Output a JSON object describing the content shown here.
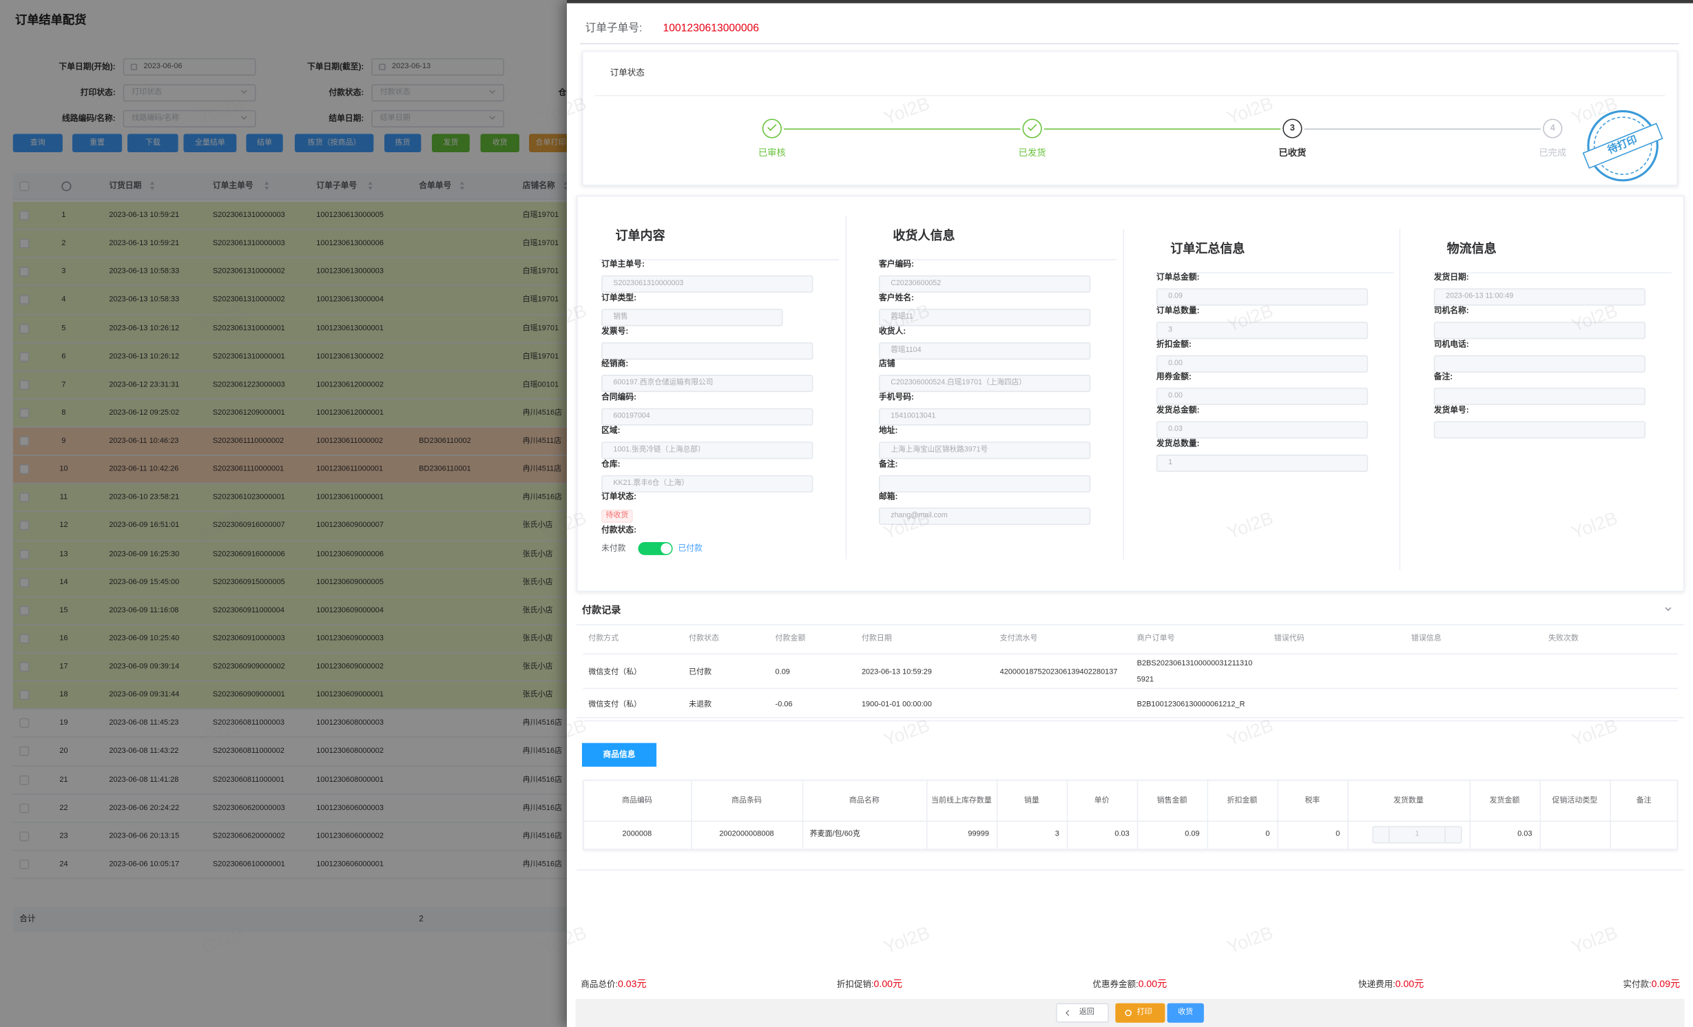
{
  "list_page": {
    "title": "订单结单配货",
    "filters": [
      {
        "label": "下单日期(开始):",
        "value": "2023-06-06"
      },
      {
        "label": "下单日期(截至):",
        "value": "2023-06-13"
      },
      {
        "label": "打印状态:",
        "placeholder": "打印状态"
      },
      {
        "label": "付款状态:",
        "placeholder": "付款状态"
      },
      {
        "label": "线路编码/名称:",
        "placeholder": "线路编码/名称"
      },
      {
        "label": "结单日期:",
        "placeholder": "结单日期"
      }
    ],
    "cut_label": "仓",
    "buttons": [
      "查询",
      "重置",
      "下载",
      "全量结单",
      "结单",
      "拣货（按商品）",
      "拣货",
      "发货",
      "收货",
      "合单打印"
    ],
    "columns": [
      "订货日期",
      "订单主单号",
      "订单子单号",
      "合单单号",
      "店铺名称"
    ],
    "rows": [
      {
        "index": 1,
        "date": "2023-06-13 10:59:21",
        "main": "S2023061310000003",
        "sub": "1001230613000005",
        "store": "白瑶19701"
      },
      {
        "index": 2,
        "date": "2023-06-13 10:59:21",
        "main": "S2023061310000003",
        "sub": "1001230613000006",
        "store": "白瑶19701"
      },
      {
        "index": 3,
        "date": "2023-06-13 10:58:33",
        "main": "S2023061310000002",
        "sub": "1001230613000003",
        "store": "白瑶19701"
      },
      {
        "index": 4,
        "date": "2023-06-13 10:58:33",
        "main": "S2023061310000002",
        "sub": "1001230613000004",
        "store": "白瑶19701"
      },
      {
        "index": 5,
        "date": "2023-06-13 10:26:12",
        "main": "S2023061310000001",
        "sub": "1001230613000001",
        "store": "白瑶19701"
      },
      {
        "index": 6,
        "date": "2023-06-13 10:26:12",
        "main": "S2023061310000001",
        "sub": "1001230613000002",
        "store": "白瑶19701"
      },
      {
        "index": 7,
        "date": "2023-06-12 23:31:31",
        "main": "S2023061223000003",
        "sub": "1001230612000002",
        "store": "白瑶00101"
      },
      {
        "index": 8,
        "date": "2023-06-12 09:25:02",
        "main": "S2023061209000001",
        "sub": "1001230612000001",
        "store": "冉川4516店"
      },
      {
        "index": 9,
        "date": "2023-06-11 10:46:23",
        "main": "S2023061110000002",
        "sub": "1001230611000002",
        "merge": "BD2306110002",
        "store": "冉川4511店"
      },
      {
        "index": 10,
        "date": "2023-06-11 10:42:26",
        "main": "S2023061110000001",
        "sub": "1001230611000001",
        "merge": "BD2306110001",
        "store": "冉川4511店"
      },
      {
        "index": 11,
        "date": "2023-06-10 23:58:21",
        "main": "S2023061023000001",
        "sub": "1001230610000001",
        "store": "冉川4516店"
      },
      {
        "index": 12,
        "date": "2023-06-09 16:51:01",
        "main": "S2023060916000007",
        "sub": "1001230609000007",
        "store": "张氏小店"
      },
      {
        "index": 13,
        "date": "2023-06-09 16:25:30",
        "main": "S2023060916000006",
        "sub": "1001230609000006",
        "store": "张氏小店"
      },
      {
        "index": 14,
        "date": "2023-06-09 15:45:00",
        "main": "S2023060915000005",
        "sub": "1001230609000005",
        "store": "张氏小店"
      },
      {
        "index": 15,
        "date": "2023-06-09 11:16:08",
        "main": "S2023060911000004",
        "sub": "1001230609000004",
        "store": "张氏小店"
      },
      {
        "index": 16,
        "date": "2023-06-09 10:25:40",
        "main": "S2023060910000003",
        "sub": "1001230609000003",
        "store": "张氏小店"
      },
      {
        "index": 17,
        "date": "2023-06-09 09:39:14",
        "main": "S2023060909000002",
        "sub": "1001230609000002",
        "store": "张氏小店"
      },
      {
        "index": 18,
        "date": "2023-06-09 09:31:44",
        "main": "S2023060909000001",
        "sub": "1001230609000001",
        "store": "张氏小店"
      },
      {
        "index": 19,
        "date": "2023-06-08 11:45:23",
        "main": "S2023060811000003",
        "sub": "1001230608000003",
        "store": "冉川4516店"
      },
      {
        "index": 20,
        "date": "2023-06-08 11:43:22",
        "main": "S2023060811000002",
        "sub": "1001230608000002",
        "store": "冉川4516店"
      },
      {
        "index": 21,
        "date": "2023-06-08 11:41:28",
        "main": "S2023060811000001",
        "sub": "1001230608000001",
        "store": "冉川4516店"
      },
      {
        "index": 22,
        "date": "2023-06-06 20:24:22",
        "main": "S2023060620000003",
        "sub": "1001230606000003",
        "store": "冉川4516店"
      },
      {
        "index": 23,
        "date": "2023-06-06 20:13:15",
        "main": "S2023060620000002",
        "sub": "1001230606000002",
        "store": "冉川4516店"
      },
      {
        "index": 24,
        "date": "2023-06-06 10:05:17",
        "main": "S2023060610000001",
        "sub": "1001230606000001",
        "store": "冉川4516店"
      }
    ],
    "footer": {
      "label": "合计",
      "value": "2"
    }
  },
  "drawer": {
    "header": {
      "label": "订单子单号:",
      "value": "1001230613000006"
    },
    "status_card": {
      "title": "订单状态",
      "steps": [
        {
          "label": "已审核",
          "state": "done"
        },
        {
          "label": "已发货",
          "state": "done"
        },
        {
          "number": 3,
          "label": "已收货",
          "state": "current"
        },
        {
          "number": 4,
          "label": "已完成",
          "state": "wait"
        }
      ],
      "stamp": "待打印"
    },
    "sections": [
      {
        "title": "订单内容",
        "fields": [
          {
            "label": "订单主单号:",
            "value": "S2023061310000003"
          },
          {
            "label": "订单类型:",
            "value": "销售"
          },
          {
            "label": "发票号:"
          },
          {
            "label": "经销商:",
            "value": "600197.西京仓储运输有限公司"
          },
          {
            "label": "合同编码:",
            "value": "600197004"
          },
          {
            "label": "区域:",
            "value": "1001.张亮冷链（上海总部）"
          },
          {
            "label": "仓库:",
            "value": "KK21.票丰6仓（上海）"
          },
          {
            "label": "订单状态:",
            "tag": "待收货"
          },
          {
            "label": "付款状态:",
            "switch": {
              "off": "未付款",
              "on": "已付款",
              "checked": true
            }
          }
        ]
      },
      {
        "title": "收货人信息",
        "fields": [
          {
            "label": "客户编码:",
            "value": "C20230600052"
          },
          {
            "label": "客户姓名:",
            "value": "蓉瑶11"
          },
          {
            "label": "收货人:",
            "value": "蓉瑶1104"
          },
          {
            "label": "店铺",
            "value": "C202306000524.白瑶19701（上海四店）"
          },
          {
            "label": "手机号码:",
            "value": "15410013041"
          },
          {
            "label": "地址:",
            "value": "上海上海宝山区锦秋路3971号"
          },
          {
            "label": "备注:"
          },
          {
            "label": "邮箱:",
            "value": "zhang@mail.com"
          }
        ]
      },
      {
        "title": "订单汇总信息",
        "fields": [
          {
            "label": "订单总金额:",
            "value": "0.09"
          },
          {
            "label": "订单总数量:",
            "value": "3"
          },
          {
            "label": "折扣金额:",
            "value": "0.00"
          },
          {
            "label": "用券金额:",
            "value": "0.00"
          },
          {
            "label": "发货总金额:",
            "value": "0.03"
          },
          {
            "label": "发货总数量:",
            "value": "1"
          }
        ]
      },
      {
        "title": "物流信息",
        "fields": [
          {
            "label": "发货日期:",
            "value": "2023-06-13 11:00:49"
          },
          {
            "label": "司机名称:"
          },
          {
            "label": "司机电话:"
          },
          {
            "label": "备注:"
          },
          {
            "label": "发货单号:"
          }
        ]
      }
    ],
    "payment": {
      "title": "付款记录",
      "columns": [
        "付款方式",
        "付款状态",
        "付款金额",
        "付款日期",
        "支付流水号",
        "商户订单号",
        "错误代码",
        "错误信息",
        "失败次数"
      ],
      "rows": [
        [
          "微信支付（私）",
          "已付款",
          "0.09",
          "2023-06-13 10:59:29",
          "4200001875202306139402280137",
          "B2BS202306131000000312113105921",
          null,
          null,
          null
        ],
        [
          "微信支付（私）",
          "未退款",
          "-0.06",
          "1900-01-01 00:00:00",
          null,
          "B2B10012306130000061212_R",
          null,
          null,
          null
        ]
      ]
    },
    "goods": {
      "tab": "商品信息",
      "columns": [
        "商品编码",
        "商品条码",
        "商品名称",
        "当前线上库存数量",
        "销量",
        "单价",
        "销售金额",
        "折扣金额",
        "税率",
        "发货数量",
        "发货金额",
        "促销活动类型",
        "备注"
      ],
      "rows": [
        [
          "2000008",
          "2002000008008",
          "荞麦面/包/60克",
          "99999",
          "3",
          "0.03",
          "0.09",
          "0",
          "0",
          "1",
          "0.03",
          null,
          null
        ]
      ]
    },
    "summary": [
      {
        "label": "商品总价:",
        "value": "0.03元"
      },
      {
        "label": "折扣促销:",
        "value": "0.00元"
      },
      {
        "label": "优惠券金额:",
        "value": "0.00元"
      },
      {
        "label": "快递费用:",
        "value": "0.00元"
      },
      {
        "label": "实付款:",
        "value": "0.09元"
      }
    ],
    "actions": [
      "返回",
      "打印",
      "收货"
    ]
  },
  "watermark": "Yol2B"
}
